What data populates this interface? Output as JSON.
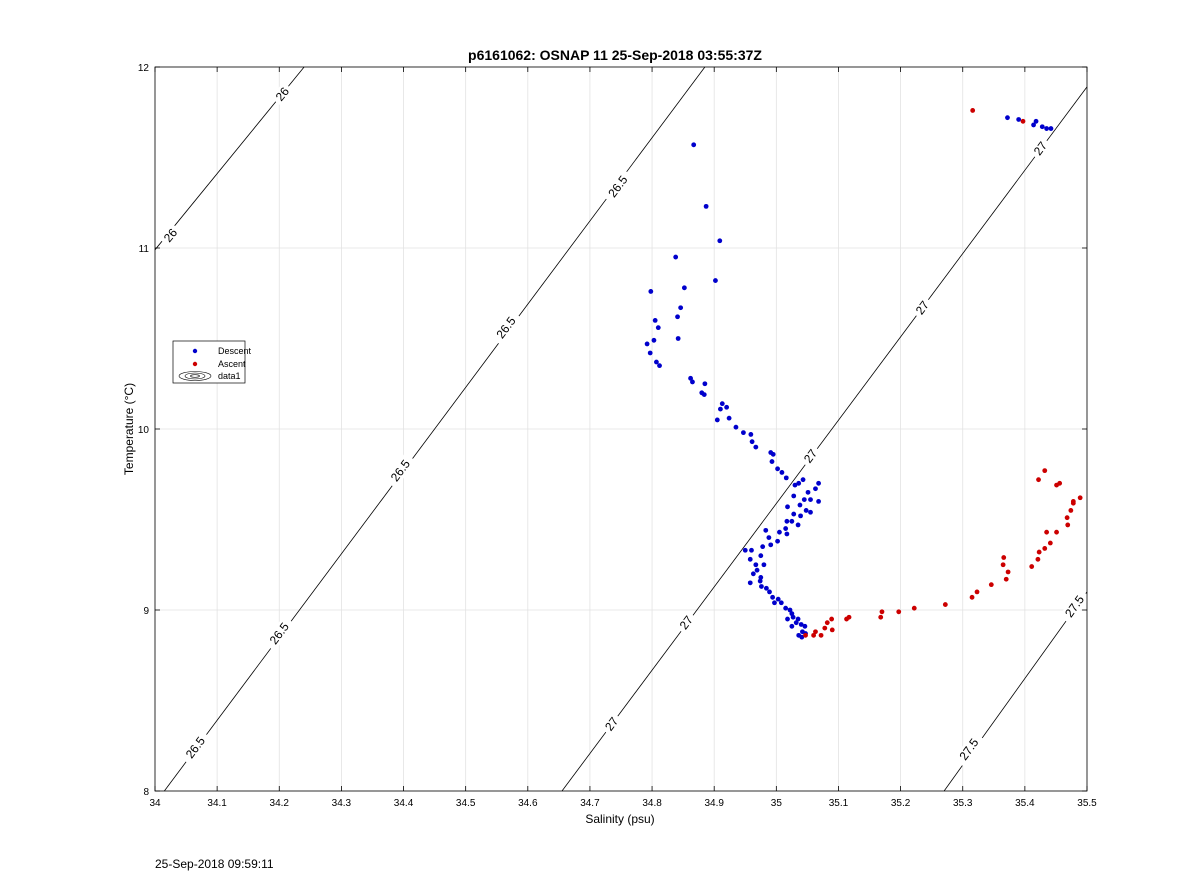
{
  "chart_data": {
    "type": "scatter",
    "title": "p6161062: OSNAP 11 25-Sep-2018 03:55:37Z",
    "xlabel": "Salinity (psu)",
    "ylabel": "Temperature (°C)",
    "xlim": [
      34,
      35.5
    ],
    "ylim": [
      8,
      12
    ],
    "xticks": [
      34,
      34.1,
      34.2,
      34.3,
      34.4,
      34.5,
      34.6,
      34.7,
      34.8,
      34.9,
      35,
      35.1,
      35.2,
      35.3,
      35.4,
      35.5
    ],
    "xtick_labels": [
      "34",
      "34.1",
      "34.2",
      "34.3",
      "34.4",
      "34.5",
      "34.6",
      "34.7",
      "34.8",
      "34.9",
      "35",
      "35.1",
      "35.2",
      "35.3",
      "35.4",
      "35.5"
    ],
    "yticks": [
      8,
      9,
      10,
      11,
      12
    ],
    "ytick_labels": [
      "8",
      "9",
      "10",
      "11",
      "12"
    ],
    "grid": true,
    "legend_position": "left",
    "legend": [
      "Descent",
      "Ascent",
      "data1"
    ],
    "colors": {
      "descent": "#0000cc",
      "ascent": "#cc0000",
      "contour": "#000000",
      "grid": "#e2e2e2"
    },
    "contours": [
      {
        "label": "26",
        "points": [
          [
            34.0,
            10.99
          ],
          [
            34.24,
            12.0
          ]
        ],
        "label_positions": [
          [
            34.025,
            11.07
          ],
          [
            34.205,
            11.85
          ]
        ]
      },
      {
        "label": "26.5",
        "points": [
          [
            34.015,
            8.0
          ],
          [
            34.885,
            12.0
          ]
        ],
        "label_positions": [
          [
            34.065,
            8.24
          ],
          [
            34.2,
            8.87
          ],
          [
            34.395,
            9.77
          ],
          [
            34.565,
            10.56
          ],
          [
            34.745,
            11.34
          ]
        ]
      },
      {
        "label": "27",
        "points": [
          [
            34.655,
            8.0
          ],
          [
            35.5,
            11.89
          ]
        ],
        "label_positions": [
          [
            34.735,
            8.37
          ],
          [
            34.855,
            8.93
          ],
          [
            35.055,
            9.85
          ],
          [
            35.235,
            10.67
          ],
          [
            35.425,
            11.55
          ]
        ]
      },
      {
        "label": "27.5",
        "points": [
          [
            35.27,
            8.0
          ],
          [
            35.5,
            9.1
          ]
        ],
        "label_positions": [
          [
            35.31,
            8.23
          ],
          [
            35.48,
            9.02
          ]
        ]
      }
    ],
    "series": [
      {
        "name": "Descent",
        "points": [
          [
            34.867,
            11.57
          ],
          [
            34.887,
            11.23
          ],
          [
            34.909,
            11.04
          ],
          [
            34.838,
            10.95
          ],
          [
            34.902,
            10.82
          ],
          [
            34.852,
            10.78
          ],
          [
            34.798,
            10.76
          ],
          [
            34.846,
            10.67
          ],
          [
            34.805,
            10.6
          ],
          [
            34.841,
            10.62
          ],
          [
            34.81,
            10.56
          ],
          [
            34.803,
            10.49
          ],
          [
            34.792,
            10.47
          ],
          [
            34.842,
            10.5
          ],
          [
            34.797,
            10.42
          ],
          [
            34.807,
            10.37
          ],
          [
            34.812,
            10.35
          ],
          [
            34.862,
            10.28
          ],
          [
            34.865,
            10.26
          ],
          [
            34.885,
            10.25
          ],
          [
            34.88,
            10.2
          ],
          [
            34.884,
            10.19
          ],
          [
            34.913,
            10.14
          ],
          [
            34.92,
            10.12
          ],
          [
            34.91,
            10.11
          ],
          [
            34.905,
            10.05
          ],
          [
            34.924,
            10.06
          ],
          [
            34.935,
            10.01
          ],
          [
            34.947,
            9.98
          ],
          [
            34.959,
            9.97
          ],
          [
            34.961,
            9.93
          ],
          [
            34.967,
            9.9
          ],
          [
            34.991,
            9.87
          ],
          [
            34.995,
            9.86
          ],
          [
            34.993,
            9.82
          ],
          [
            35.002,
            9.78
          ],
          [
            35.009,
            9.76
          ],
          [
            35.016,
            9.73
          ],
          [
            35.043,
            9.72
          ],
          [
            35.036,
            9.7
          ],
          [
            35.068,
            9.7
          ],
          [
            35.03,
            9.69
          ],
          [
            35.063,
            9.67
          ],
          [
            35.051,
            9.65
          ],
          [
            35.028,
            9.63
          ],
          [
            35.055,
            9.61
          ],
          [
            35.045,
            9.61
          ],
          [
            35.068,
            9.6
          ],
          [
            35.038,
            9.58
          ],
          [
            35.018,
            9.57
          ],
          [
            35.048,
            9.55
          ],
          [
            35.055,
            9.54
          ],
          [
            35.028,
            9.53
          ],
          [
            35.039,
            9.52
          ],
          [
            35.017,
            9.49
          ],
          [
            35.025,
            9.49
          ],
          [
            35.035,
            9.47
          ],
          [
            35.015,
            9.45
          ],
          [
            35.005,
            9.43
          ],
          [
            35.017,
            9.42
          ],
          [
            34.983,
            9.44
          ],
          [
            34.988,
            9.4
          ],
          [
            35.002,
            9.38
          ],
          [
            34.991,
            9.36
          ],
          [
            34.978,
            9.35
          ],
          [
            34.96,
            9.33
          ],
          [
            34.95,
            9.33
          ],
          [
            34.975,
            9.3
          ],
          [
            34.958,
            9.28
          ],
          [
            34.967,
            9.25
          ],
          [
            34.98,
            9.25
          ],
          [
            34.969,
            9.22
          ],
          [
            34.963,
            9.2
          ],
          [
            34.975,
            9.18
          ],
          [
            34.974,
            9.16
          ],
          [
            34.958,
            9.15
          ],
          [
            34.976,
            9.13
          ],
          [
            34.984,
            9.12
          ],
          [
            34.989,
            9.1
          ],
          [
            34.994,
            9.07
          ],
          [
            35.003,
            9.06
          ],
          [
            34.997,
            9.04
          ],
          [
            35.008,
            9.04
          ],
          [
            35.015,
            9.01
          ],
          [
            35.022,
            9.0
          ],
          [
            35.025,
            8.98
          ],
          [
            35.027,
            8.96
          ],
          [
            35.018,
            8.95
          ],
          [
            35.035,
            8.95
          ],
          [
            35.032,
            8.93
          ],
          [
            35.04,
            8.92
          ],
          [
            35.025,
            8.91
          ],
          [
            35.046,
            8.91
          ],
          [
            35.042,
            8.88
          ],
          [
            35.047,
            8.87
          ],
          [
            35.036,
            8.86
          ],
          [
            35.041,
            8.85
          ],
          [
            35.39,
            11.71
          ],
          [
            35.418,
            11.7
          ],
          [
            35.435,
            11.66
          ],
          [
            35.428,
            11.67
          ],
          [
            35.442,
            11.66
          ],
          [
            35.414,
            11.68
          ],
          [
            35.372,
            11.72
          ]
        ]
      },
      {
        "name": "Ascent",
        "points": [
          [
            35.316,
            11.76
          ],
          [
            35.397,
            11.7
          ],
          [
            35.047,
            8.86
          ],
          [
            35.06,
            8.86
          ],
          [
            35.063,
            8.88
          ],
          [
            35.072,
            8.86
          ],
          [
            35.078,
            8.9
          ],
          [
            35.082,
            8.93
          ],
          [
            35.089,
            8.95
          ],
          [
            35.09,
            8.89
          ],
          [
            35.113,
            8.95
          ],
          [
            35.117,
            8.96
          ],
          [
            35.168,
            8.96
          ],
          [
            35.17,
            8.99
          ],
          [
            35.197,
            8.99
          ],
          [
            35.222,
            9.01
          ],
          [
            35.272,
            9.03
          ],
          [
            35.315,
            9.07
          ],
          [
            35.323,
            9.1
          ],
          [
            35.346,
            9.14
          ],
          [
            35.37,
            9.17
          ],
          [
            35.373,
            9.21
          ],
          [
            35.365,
            9.25
          ],
          [
            35.366,
            9.29
          ],
          [
            35.411,
            9.24
          ],
          [
            35.421,
            9.28
          ],
          [
            35.423,
            9.32
          ],
          [
            35.432,
            9.34
          ],
          [
            35.441,
            9.37
          ],
          [
            35.451,
            9.43
          ],
          [
            35.435,
            9.43
          ],
          [
            35.469,
            9.47
          ],
          [
            35.468,
            9.51
          ],
          [
            35.474,
            9.55
          ],
          [
            35.478,
            9.6
          ],
          [
            35.489,
            9.62
          ],
          [
            35.478,
            9.59
          ],
          [
            35.451,
            9.69
          ],
          [
            35.456,
            9.7
          ],
          [
            35.422,
            9.72
          ],
          [
            35.432,
            9.77
          ]
        ]
      }
    ]
  },
  "footer": {
    "timestamp": "25-Sep-2018 09:59:11"
  }
}
